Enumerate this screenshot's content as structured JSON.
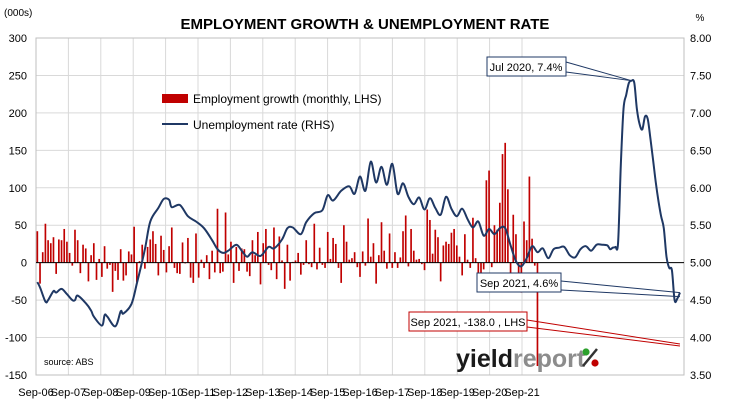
{
  "chart_data": {
    "type": "bar+line",
    "title": "EMPLOYMENT GROWTH & UNEMPLOYMENT RATE",
    "left_axis": {
      "unit": "(000s)",
      "range": [
        -150,
        300
      ],
      "ticks": [
        "300",
        "250",
        "200",
        "150",
        "100",
        "50",
        "0",
        "-50",
        "-100",
        "-150"
      ]
    },
    "right_axis": {
      "unit": "%",
      "range": [
        3.5,
        8.0
      ],
      "ticks": [
        "8.00",
        "7.50",
        "7.00",
        "6.50",
        "6.00",
        "5.50",
        "5.00",
        "4.50",
        "4.00",
        "3.50"
      ]
    },
    "x_axis": {
      "ticks": [
        "Sep-06",
        "Sep-07",
        "Sep-08",
        "Sep-09",
        "Sep-10",
        "Sep-11",
        "Sep-12",
        "Sep-13",
        "Sep-14",
        "Sep-15",
        "Sep-16",
        "Sep-17",
        "Sep-18",
        "Sep-19",
        "Sep-20",
        "Sep-21"
      ],
      "start": "Sep-06",
      "end": "Sep-21"
    },
    "grid": true,
    "legend_position": "upper-left",
    "series": [
      {
        "name": "Employment growth (monthly, LHS)",
        "kind": "bar",
        "axis": "left",
        "color": "#c00000",
        "values": [
          42,
          -28,
          14,
          52,
          30,
          26,
          34,
          -15,
          31,
          30,
          45,
          28,
          13,
          -4,
          44,
          30,
          -14,
          24,
          19,
          -25,
          10,
          26,
          -23,
          5,
          -19,
          22,
          -8,
          -3,
          -39,
          -11,
          -23,
          18,
          -24,
          -17,
          15,
          11,
          48,
          -26,
          2,
          24,
          -8,
          21,
          31,
          42,
          25,
          -17,
          36,
          17,
          -13,
          22,
          47,
          -7,
          -14,
          -15,
          27,
          -1,
          33,
          -20,
          -27,
          39,
          -20,
          4,
          -7,
          10,
          -22,
          16,
          -13,
          72,
          -14,
          -12,
          67,
          11,
          28,
          -27,
          21,
          -11,
          19,
          18,
          -12,
          -18,
          30,
          10,
          41,
          -29,
          26,
          45,
          -3,
          -10,
          47,
          -22,
          35,
          3,
          -35,
          24,
          -24,
          1,
          3,
          13,
          -16,
          -3,
          30,
          -2,
          -6,
          52,
          -9,
          20,
          -3,
          -7,
          41,
          5,
          33,
          25,
          -7,
          -27,
          50,
          28,
          4,
          6,
          14,
          -6,
          -19,
          15,
          -4,
          59,
          8,
          26,
          -28,
          10,
          54,
          16,
          -8,
          39,
          -7,
          14,
          -7,
          7,
          42,
          63,
          -5,
          45,
          16,
          4,
          5,
          -2,
          -10,
          71,
          57,
          12,
          44,
          34,
          -25,
          23,
          28,
          25,
          40,
          45,
          23,
          8,
          -17,
          38,
          4,
          -7,
          60,
          6,
          -27,
          -36,
          -9,
          110,
          123,
          -6,
          50,
          44,
          80,
          145,
          160,
          98,
          -15,
          64,
          38,
          -33,
          -40,
          55,
          30,
          115,
          32,
          -4,
          -138
        ]
      },
      {
        "name": "Unemployment rate (RHS)",
        "kind": "line",
        "axis": "right",
        "color": "#1f3864",
        "anchors": [
          [
            0,
            4.74
          ],
          [
            1,
            4.67
          ],
          [
            3,
            4.48
          ],
          [
            4,
            4.5
          ],
          [
            6,
            4.62
          ],
          [
            7,
            4.6
          ],
          [
            9,
            4.65
          ],
          [
            11,
            4.58
          ],
          [
            13,
            4.5
          ],
          [
            14,
            4.5
          ],
          [
            15,
            4.56
          ],
          [
            18,
            4.46
          ],
          [
            20,
            4.36
          ],
          [
            21,
            4.28
          ],
          [
            24,
            4.16
          ],
          [
            25,
            4.3
          ],
          [
            26,
            4.28
          ],
          [
            29,
            4.15
          ],
          [
            31,
            4.35
          ],
          [
            32,
            4.32
          ],
          [
            35,
            4.45
          ],
          [
            37,
            4.72
          ],
          [
            40,
            5.18
          ],
          [
            42,
            5.55
          ],
          [
            45,
            5.73
          ],
          [
            47,
            5.85
          ],
          [
            49,
            5.84
          ],
          [
            50,
            5.74
          ],
          [
            53,
            5.77
          ],
          [
            56,
            5.62
          ],
          [
            59,
            5.55
          ],
          [
            62,
            5.46
          ],
          [
            65,
            5.3
          ],
          [
            67,
            5.18
          ],
          [
            69,
            5.13
          ],
          [
            71,
            5.16
          ],
          [
            74,
            5.24
          ],
          [
            76,
            5.16
          ],
          [
            78,
            5.08
          ],
          [
            80,
            5.14
          ],
          [
            83,
            5.09
          ],
          [
            86,
            5.21
          ],
          [
            88,
            5.19
          ],
          [
            91,
            5.31
          ],
          [
            93,
            5.46
          ],
          [
            95,
            5.47
          ],
          [
            98,
            5.38
          ],
          [
            100,
            5.54
          ],
          [
            103,
            5.66
          ],
          [
            106,
            5.7
          ],
          [
            108,
            5.9
          ],
          [
            110,
            5.83
          ],
          [
            113,
            5.96
          ],
          [
            116,
            6.02
          ],
          [
            118,
            5.92
          ],
          [
            120,
            6.15
          ],
          [
            122,
            5.96
          ],
          [
            124,
            6.35
          ],
          [
            126,
            6.07
          ],
          [
            128,
            6.28
          ],
          [
            130,
            6.04
          ],
          [
            132,
            6.32
          ],
          [
            134,
            5.92
          ],
          [
            136,
            6.06
          ],
          [
            138,
            5.88
          ],
          [
            140,
            5.78
          ],
          [
            142,
            5.87
          ],
          [
            144,
            5.71
          ],
          [
            146,
            5.86
          ],
          [
            148,
            5.73
          ],
          [
            150,
            5.64
          ],
          [
            152,
            5.88
          ],
          [
            154,
            5.72
          ],
          [
            156,
            5.62
          ],
          [
            158,
            5.72
          ],
          [
            160,
            5.58
          ],
          [
            162,
            5.47
          ],
          [
            164,
            5.55
          ],
          [
            166,
            5.36
          ],
          [
            168,
            5.45
          ],
          [
            170,
            5.38
          ],
          [
            172,
            5.46
          ],
          [
            174,
            5.46
          ],
          [
            176,
            5.23
          ],
          [
            178,
            5.02
          ],
          [
            180,
            4.95
          ],
          [
            182,
            5.06
          ],
          [
            184,
            5.22
          ],
          [
            186,
            5.14
          ],
          [
            188,
            5.19
          ],
          [
            190,
            5.06
          ],
          [
            192,
            5.18
          ],
          [
            194,
            5.2
          ],
          [
            196,
            5.21
          ],
          [
            198,
            5.1
          ],
          [
            200,
            5.07
          ],
          [
            202,
            5.18
          ],
          [
            204,
            5.22
          ],
          [
            206,
            5.16
          ],
          [
            208,
            5.24
          ],
          [
            210,
            5.24
          ],
          [
            212,
            5.23
          ],
          [
            213,
            5.18
          ],
          [
            214,
            5.2
          ],
          [
            215,
            5.21
          ],
          [
            216,
            5.27
          ],
          [
            217,
            6.3
          ],
          [
            218,
            7.05
          ],
          [
            219,
            7.24
          ],
          [
            220,
            7.4
          ],
          [
            221,
            7.43
          ],
          [
            222,
            7.4
          ],
          [
            223,
            7.05
          ],
          [
            224,
            6.85
          ],
          [
            225,
            6.78
          ],
          [
            226,
            6.95
          ],
          [
            227,
            6.92
          ],
          [
            228,
            6.66
          ],
          [
            229,
            6.37
          ],
          [
            230,
            6.07
          ],
          [
            231,
            5.82
          ],
          [
            232,
            5.62
          ],
          [
            233,
            5.46
          ],
          [
            234,
            5.08
          ],
          [
            235,
            4.93
          ],
          [
            236,
            4.9
          ],
          [
            237,
            4.5
          ],
          [
            238,
            4.52
          ],
          [
            239,
            4.6
          ]
        ]
      }
    ],
    "annotations": [
      {
        "text": "Jul 2020, 7.4%",
        "target_series": "Unemployment rate (RHS)",
        "target_month_index": 221,
        "target_value": 7.43
      },
      {
        "text": "Sep 2021, 4.6%",
        "target_series": "Unemployment rate (RHS)",
        "target_month_index": 239,
        "target_value": 4.6
      },
      {
        "text": "Sep 2021, -138.0 , LHS",
        "target_series": "Employment growth (monthly, LHS)",
        "target_month_index": 239,
        "target_value": -138
      }
    ],
    "source": "source: ABS"
  },
  "logo": {
    "part1": "yield",
    "part2": "report",
    "symbol": "%"
  },
  "colors": {
    "bar": "#c00000",
    "line": "#1f3864",
    "grid": "#d9d9d9",
    "annotation_blue": "#1f3864",
    "annotation_red": "#c00000",
    "logo_green": "#2ca02c",
    "logo_red": "#c00000"
  }
}
